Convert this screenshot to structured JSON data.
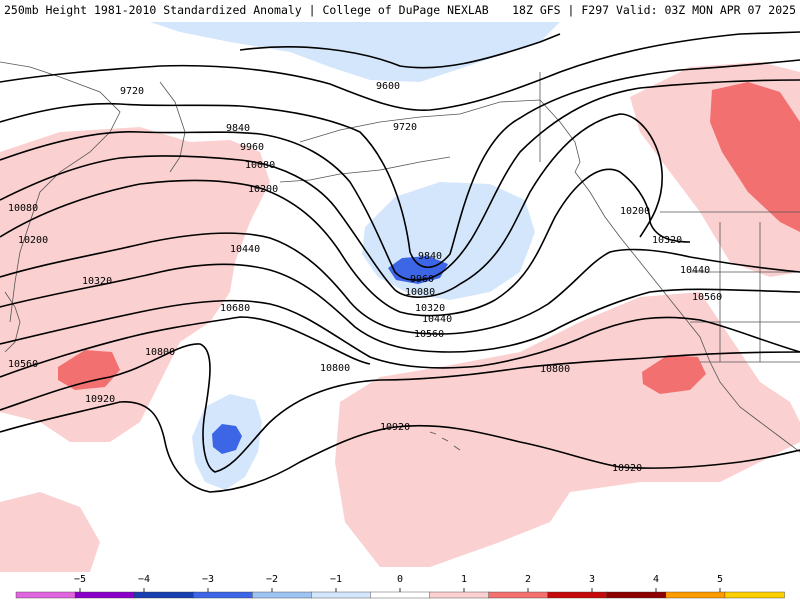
{
  "header": {
    "title_left": "250mb Height 1981-2010 Standardized Anomaly | College of DuPage NEXLAB",
    "title_right": "18Z GFS | F297 Valid: 03Z MON APR 07 2025"
  },
  "contour_labels": [
    "9720",
    "9600",
    "9720",
    "9840",
    "9960",
    "10080",
    "10080",
    "10200",
    "10200",
    "10440",
    "10320",
    "10680",
    "10800",
    "10560",
    "10920",
    "9840",
    "9960",
    "10080",
    "10320",
    "10440",
    "10560",
    "10800",
    "10920",
    "10200",
    "10320",
    "10440",
    "10560",
    "10800",
    "10920"
  ],
  "colorbar": {
    "labels": [
      "−5",
      "−4",
      "−3",
      "−2",
      "−1",
      "0",
      "1",
      "2",
      "3",
      "4",
      "5"
    ],
    "colors": [
      "#e066e0",
      "#8a00c8",
      "#1a3fb0",
      "#3d66e6",
      "#9fc4f2",
      "#d4e6fb",
      "#ffffff",
      "#fbd0d0",
      "#f27070",
      "#c40a0a",
      "#8c0000",
      "#ff9a00",
      "#ffd000"
    ]
  }
}
